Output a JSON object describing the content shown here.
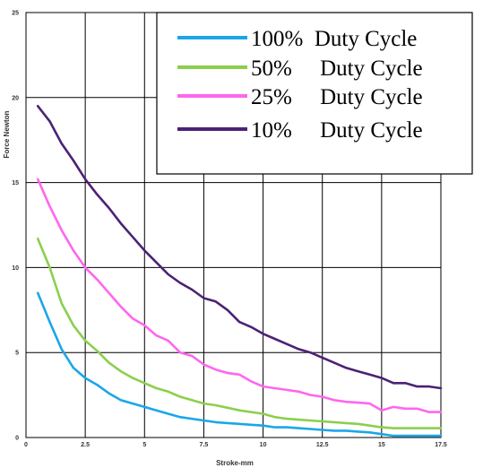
{
  "chart_data": {
    "type": "line",
    "xlabel": "Stroke-mm",
    "ylabel": "Force Newton",
    "xlim": [
      0,
      17.5
    ],
    "ylim": [
      0,
      25
    ],
    "x_ticks": [
      "0",
      "2.5",
      "5",
      "7.5",
      "10",
      "12.5",
      "15",
      "17.5"
    ],
    "y_ticks": [
      "0",
      "5",
      "10",
      "15",
      "20",
      "25"
    ],
    "grid": true,
    "legend_position": "top-right",
    "series": [
      {
        "name": "100%  Duty Cycle",
        "color": "#1aa7e8",
        "x": [
          0.5,
          1,
          1.5,
          2,
          2.5,
          3,
          3.5,
          4,
          4.5,
          5,
          5.5,
          6,
          6.5,
          7,
          7.5,
          8,
          8.5,
          9,
          9.5,
          10,
          10.5,
          11,
          11.5,
          12,
          12.5,
          13,
          13.5,
          14,
          14.5,
          15,
          15.5,
          16,
          16.5,
          17,
          17.5
        ],
        "values": [
          8.5,
          6.8,
          5.2,
          4.1,
          3.5,
          3.1,
          2.6,
          2.2,
          2.0,
          1.8,
          1.6,
          1.4,
          1.2,
          1.1,
          1.0,
          0.9,
          0.85,
          0.8,
          0.75,
          0.7,
          0.6,
          0.6,
          0.55,
          0.5,
          0.45,
          0.4,
          0.4,
          0.35,
          0.3,
          0.2,
          0.1,
          0.1,
          0.1,
          0.1,
          0.1
        ]
      },
      {
        "name": "50%     Duty Cycle",
        "color": "#8ccf4d",
        "x": [
          0.5,
          1,
          1.5,
          2,
          2.5,
          3,
          3.5,
          4,
          4.5,
          5,
          5.5,
          6,
          6.5,
          7,
          7.5,
          8,
          8.5,
          9,
          9.5,
          10,
          10.5,
          11,
          11.5,
          12,
          12.5,
          13,
          13.5,
          14,
          14.5,
          15,
          15.5,
          16,
          16.5,
          17,
          17.5
        ],
        "values": [
          11.7,
          10.0,
          7.9,
          6.6,
          5.7,
          5.1,
          4.4,
          3.9,
          3.5,
          3.2,
          2.9,
          2.7,
          2.4,
          2.2,
          2.0,
          1.9,
          1.75,
          1.6,
          1.5,
          1.4,
          1.2,
          1.1,
          1.05,
          1.0,
          0.95,
          0.9,
          0.85,
          0.8,
          0.7,
          0.6,
          0.55,
          0.55,
          0.55,
          0.55,
          0.55
        ]
      },
      {
        "name": "25%     Duty Cycle",
        "color": "#ff66ee",
        "x": [
          0.5,
          1,
          1.5,
          2,
          2.5,
          3,
          3.5,
          4,
          4.5,
          5,
          5.5,
          6,
          6.5,
          7,
          7.5,
          8,
          8.5,
          9,
          9.5,
          10,
          10.5,
          11,
          11.5,
          12,
          12.5,
          13,
          13.5,
          14,
          14.5,
          15,
          15.5,
          16,
          16.5,
          17,
          17.5
        ],
        "values": [
          15.2,
          13.6,
          12.2,
          11.0,
          10.0,
          9.3,
          8.5,
          7.7,
          7.0,
          6.6,
          6.0,
          5.7,
          5.0,
          4.8,
          4.3,
          4.0,
          3.8,
          3.7,
          3.3,
          3.0,
          2.9,
          2.8,
          2.7,
          2.5,
          2.4,
          2.2,
          2.1,
          2.05,
          2.0,
          1.6,
          1.8,
          1.7,
          1.7,
          1.5,
          1.5
        ]
      },
      {
        "name": "10%     Duty Cycle",
        "color": "#4b2275",
        "x": [
          0.5,
          1,
          1.5,
          2,
          2.5,
          3,
          3.5,
          4,
          4.5,
          5,
          5.5,
          6,
          6.5,
          7,
          7.5,
          8,
          8.5,
          9,
          9.5,
          10,
          10.5,
          11,
          11.5,
          12,
          12.5,
          13,
          13.5,
          14,
          14.5,
          15,
          15.5,
          16,
          16.5,
          17,
          17.5
        ],
        "values": [
          19.5,
          18.6,
          17.3,
          16.3,
          15.2,
          14.3,
          13.5,
          12.6,
          11.8,
          11.0,
          10.3,
          9.6,
          9.1,
          8.7,
          8.2,
          8.0,
          7.5,
          6.8,
          6.5,
          6.1,
          5.8,
          5.5,
          5.2,
          5.0,
          4.7,
          4.4,
          4.1,
          3.9,
          3.7,
          3.5,
          3.2,
          3.2,
          3.0,
          3.0,
          2.9
        ]
      }
    ]
  }
}
